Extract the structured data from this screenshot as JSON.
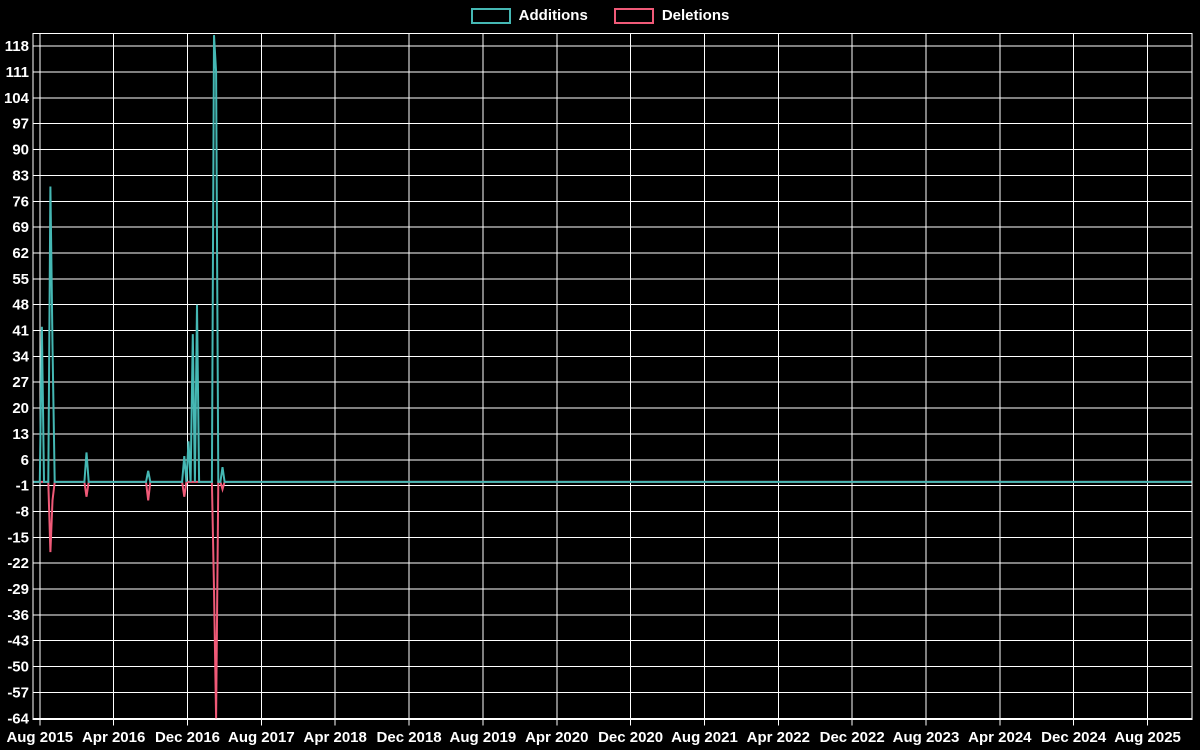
{
  "chart_data": {
    "type": "line",
    "title": "",
    "legend": [
      "Additions",
      "Deletions"
    ],
    "legend_position": "top-center",
    "grid": true,
    "background_color": "#000000",
    "grid_color": "#ffffff",
    "text_color": "#ffffff",
    "x_tick_labels": [
      "Aug 2015",
      "Apr 2016",
      "Dec 2016",
      "Aug 2017",
      "Apr 2018",
      "Dec 2018",
      "Aug 2019",
      "Apr 2020",
      "Dec 2020",
      "Aug 2021",
      "Apr 2022",
      "Dec 2022",
      "Aug 2023",
      "Apr 2024",
      "Dec 2024",
      "Aug 2025"
    ],
    "x_months_per_tick": 8,
    "x_axis_unit": "week",
    "x_axis_weeks_total": 543,
    "y_tick_labels": [
      118,
      111,
      104,
      97,
      90,
      83,
      76,
      69,
      62,
      55,
      48,
      41,
      34,
      27,
      20,
      13,
      6,
      -1,
      -8,
      -15,
      -22,
      -29,
      -36,
      -43,
      -50,
      -57,
      -64
    ],
    "y_axis_range": [
      -64,
      121
    ],
    "series": [
      {
        "name": "Additions",
        "color": "#45b8b4",
        "baseline": 0,
        "nonzero_points_by_week": {
          "1": 42,
          "5": 80,
          "6": 37,
          "22": 8,
          "51": 3,
          "68": 7,
          "70": 11,
          "72": 40,
          "74": 48,
          "82": 121,
          "83": 111,
          "86": 4
        }
      },
      {
        "name": "Deletions",
        "color": "#f05a78",
        "baseline": 0,
        "nonzero_points_by_week": {
          "5": -19,
          "6": -5,
          "22": -4,
          "51": -5,
          "68": -4,
          "82": -29,
          "83": -64,
          "86": -2
        }
      }
    ]
  }
}
